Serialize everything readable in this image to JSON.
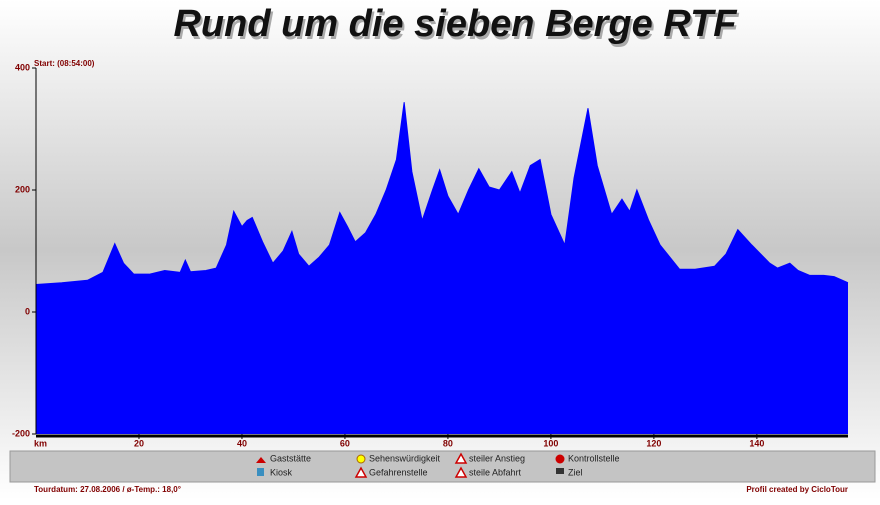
{
  "chart_data": {
    "type": "area",
    "title": "Rund um die sieben Berge RTF",
    "subtitle": "Start: (08:54:00)",
    "xlabel": "km",
    "color": "#0000ff",
    "x": [
      0,
      5,
      10,
      13,
      15.3,
      17,
      19,
      22,
      25,
      28,
      29,
      30,
      33,
      35,
      37,
      38.4,
      40,
      41,
      42,
      44,
      46,
      48,
      49.7,
      51,
      53,
      55,
      57,
      59,
      60.5,
      62,
      64,
      66,
      68,
      70,
      71.5,
      73,
      75,
      77,
      78.4,
      80,
      82,
      84,
      86,
      88,
      90,
      92.4,
      94,
      96,
      97.9,
      100,
      102.7,
      104.5,
      107.2,
      109,
      111.8,
      113.8,
      115.3,
      116.7,
      119,
      121.2,
      125,
      128,
      131.8,
      134,
      136.3,
      139,
      142.5,
      144,
      146.4,
      148,
      150.3,
      153,
      155,
      157.7
    ],
    "values": [
      45,
      48,
      52,
      65,
      112,
      80,
      62,
      62,
      68,
      65,
      85,
      66,
      68,
      72,
      110,
      165,
      140,
      150,
      155,
      115,
      80,
      100,
      132,
      95,
      75,
      90,
      110,
      163,
      140,
      115,
      130,
      160,
      200,
      250,
      344,
      230,
      150,
      200,
      233,
      190,
      160,
      200,
      235,
      205,
      200,
      230,
      195,
      240,
      250,
      160,
      110,
      220,
      334,
      240,
      160,
      185,
      165,
      200,
      150,
      110,
      70,
      70,
      75,
      95,
      135,
      110,
      80,
      72,
      80,
      68,
      60,
      60,
      58,
      48
    ],
    "xlim": [
      0,
      157.7
    ],
    "xticks": [
      20,
      40,
      60,
      80,
      100,
      120,
      140
    ],
    "ylim": [
      -200,
      400
    ],
    "yticks": [
      -200,
      0,
      200,
      400
    ]
  },
  "legend": [
    [
      "Gaststätte",
      "Kiosk"
    ],
    [
      "Sehenswürdigkeit",
      "Gefahrenstelle"
    ],
    [
      "steiler Anstieg",
      "steile Abfahrt"
    ],
    [
      "Kontrollstelle",
      "Ziel"
    ]
  ],
  "footer": {
    "left": "Tourdatum: 27.08.2006 / ø-Temp.: 18,0°",
    "right": "Profil created by CicloTour"
  }
}
